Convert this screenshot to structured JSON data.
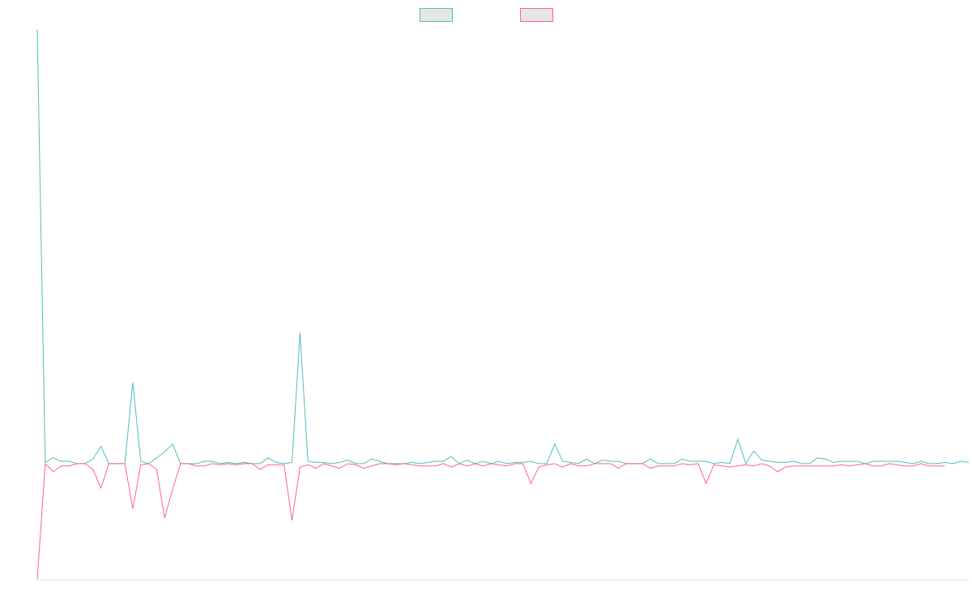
{
  "chart_data": {
    "type": "line",
    "title": "",
    "xlabel": "",
    "ylabel": "",
    "grid": false,
    "legend": "top-center",
    "ylim": [
      -1.0,
      3.75
    ],
    "series": [
      {
        "color": "#4bc0c0",
        "fill": "#e6e6e6",
        "values": [
          3.75,
          0.01,
          0.05,
          0.02,
          0.02,
          0.0,
          0.0,
          0.04,
          0.15,
          0.0,
          0.0,
          0.0,
          0.7,
          0.02,
          0.0,
          0.05,
          0.1,
          0.17,
          0.0,
          0.0,
          0.0,
          0.02,
          0.02,
          0.0,
          0.01,
          0.0,
          0.01,
          0.0,
          0.0,
          0.05,
          0.01,
          0.0,
          0.01,
          1.13,
          0.02,
          0.01,
          0.01,
          0.0,
          0.01,
          0.03,
          0.0,
          0.0,
          0.04,
          0.02,
          0.0,
          0.0,
          0.0,
          0.01,
          0.0,
          0.01,
          0.02,
          0.02,
          0.06,
          0.0,
          0.03,
          0.0,
          0.02,
          0.0,
          0.02,
          0.0,
          0.01,
          0.01,
          0.02,
          0.0,
          0.0,
          0.17,
          0.02,
          0.01,
          0.0,
          0.04,
          0.0,
          0.03,
          0.02,
          0.02,
          0.0,
          0.0,
          0.0,
          0.04,
          0.0,
          0.0,
          0.0,
          0.04,
          0.02,
          0.02,
          0.02,
          0.0,
          0.01,
          0.0,
          0.21,
          0.0,
          0.11,
          0.03,
          0.02,
          0.01,
          0.01,
          0.02,
          0.0,
          0.0,
          0.05,
          0.04,
          0.01,
          0.02,
          0.02,
          0.02,
          0.0,
          0.02,
          0.02,
          0.02,
          0.02,
          0.01,
          0.0,
          0.02,
          0.0,
          0.0,
          0.01,
          0.0,
          0.02,
          0.01
        ]
      },
      {
        "color": "#ff6384",
        "fill": "#e6e6e6",
        "values": [
          -1.0,
          0.0,
          -0.07,
          -0.02,
          -0.02,
          0.0,
          0.0,
          -0.05,
          -0.21,
          0.0,
          0.0,
          0.0,
          -0.39,
          -0.01,
          0.0,
          -0.05,
          -0.47,
          -0.22,
          0.0,
          0.0,
          -0.02,
          -0.02,
          0.0,
          -0.01,
          0.0,
          -0.01,
          0.0,
          0.0,
          -0.05,
          -0.01,
          -0.01,
          -0.01,
          -0.49,
          -0.03,
          -0.01,
          -0.04,
          0.0,
          -0.02,
          -0.04,
          0.0,
          -0.01,
          -0.04,
          -0.02,
          0.0,
          0.0,
          -0.01,
          0.0,
          -0.01,
          -0.02,
          -0.02,
          -0.02,
          0.0,
          -0.03,
          0.0,
          -0.02,
          0.0,
          -0.02,
          0.0,
          -0.01,
          -0.02,
          0.0,
          0.0,
          -0.17,
          -0.03,
          -0.01,
          0.0,
          -0.03,
          0.0,
          -0.02,
          -0.02,
          0.0,
          0.0,
          0.0,
          -0.04,
          0.0,
          0.0,
          0.0,
          -0.04,
          -0.02,
          -0.02,
          -0.02,
          0.0,
          -0.01,
          0.0,
          -0.17,
          -0.01,
          -0.02,
          -0.03,
          -0.02,
          -0.01,
          -0.02,
          0.0,
          -0.02,
          -0.07,
          -0.03,
          -0.02,
          -0.02,
          -0.02,
          -0.02,
          -0.02,
          -0.02,
          -0.01,
          -0.02,
          -0.01,
          0.0,
          -0.02,
          -0.02,
          0.0,
          -0.01,
          -0.02,
          -0.02,
          0.0,
          -0.02,
          -0.02,
          -0.02
        ]
      }
    ]
  }
}
